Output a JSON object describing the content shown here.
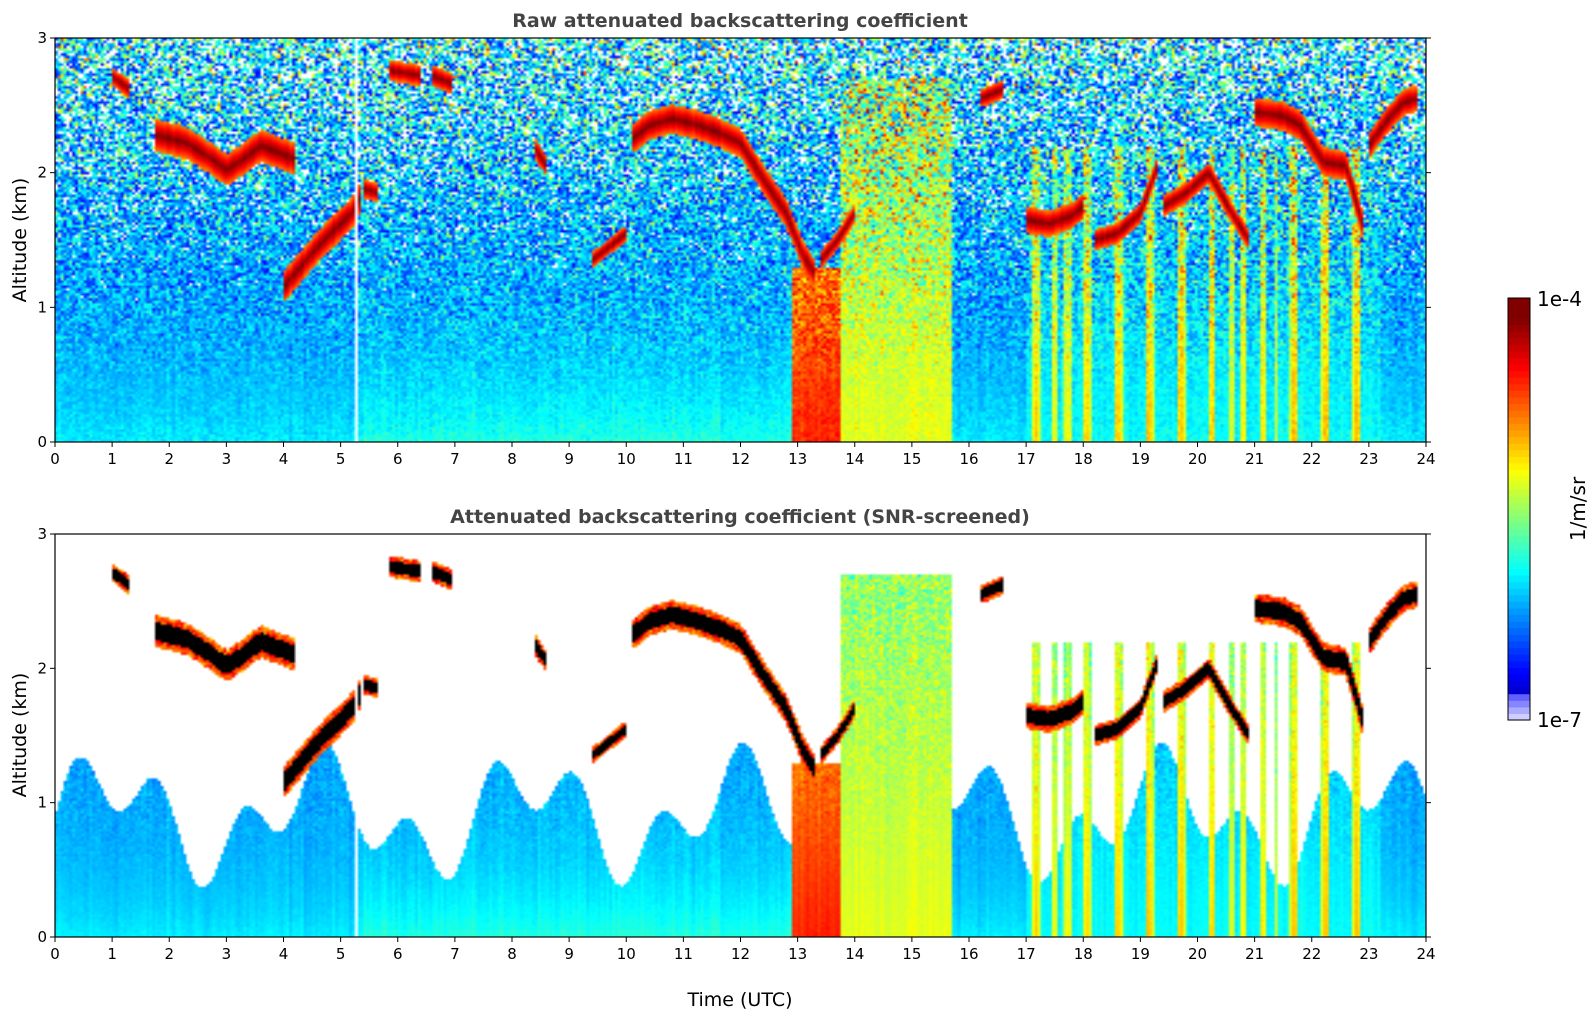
{
  "chart_data": [
    {
      "type": "heatmap",
      "title": "Raw attenuated backscattering coefficient",
      "xlabel": "",
      "ylabel": "Altitude (km)",
      "xlim": [
        0,
        24
      ],
      "ylim": [
        0,
        3
      ],
      "xticks": [
        0,
        1,
        2,
        3,
        4,
        5,
        6,
        7,
        8,
        9,
        10,
        11,
        12,
        13,
        14,
        15,
        16,
        17,
        18,
        19,
        20,
        21,
        22,
        23,
        24
      ],
      "yticks": [
        0,
        1,
        2,
        3
      ],
      "screened": false
    },
    {
      "type": "heatmap",
      "title": "Attenuated backscattering coefficient (SNR-screened)",
      "xlabel": "Time (UTC)",
      "ylabel": "Altitude (km)",
      "xlim": [
        0,
        24
      ],
      "ylim": [
        0,
        3
      ],
      "xticks": [
        0,
        1,
        2,
        3,
        4,
        5,
        6,
        7,
        8,
        9,
        10,
        11,
        12,
        13,
        14,
        15,
        16,
        17,
        18,
        19,
        20,
        21,
        22,
        23,
        24
      ],
      "yticks": [
        0,
        1,
        2,
        3
      ],
      "screened": true
    }
  ],
  "colorbar": {
    "label": "1/m/sr",
    "max_label": "1e-4",
    "min_label": "1e-7",
    "colormap": "jet",
    "scale": "log",
    "range": [
      1e-07,
      0.0001
    ]
  },
  "cloud_layers": [
    {
      "t": [
        0.98,
        1.3
      ],
      "alt": [
        2.72,
        2.62
      ],
      "w": 0.07
    },
    {
      "t": [
        1.75,
        2.3,
        2.75,
        3.0,
        3.3,
        3.6,
        3.85,
        4.2
      ],
      "alt": [
        2.28,
        2.22,
        2.1,
        2.02,
        2.1,
        2.2,
        2.16,
        2.1
      ],
      "w": 0.12
    },
    {
      "t": [
        4.0,
        4.3,
        4.6,
        4.9,
        5.2,
        5.35
      ],
      "alt": [
        1.15,
        1.3,
        1.45,
        1.58,
        1.7,
        1.82
      ],
      "w": 0.12
    },
    {
      "t": [
        5.4,
        5.65
      ],
      "alt": [
        1.88,
        1.85
      ],
      "w": 0.07
    },
    {
      "t": [
        5.85,
        6.4
      ],
      "alt": [
        2.76,
        2.72
      ],
      "w": 0.08
    },
    {
      "t": [
        6.6,
        6.95
      ],
      "alt": [
        2.72,
        2.66
      ],
      "w": 0.08
    },
    {
      "t": [
        8.4,
        8.6
      ],
      "alt": [
        2.18,
        2.05
      ],
      "w": 0.08
    },
    {
      "t": [
        9.4,
        9.7,
        10.0
      ],
      "alt": [
        1.35,
        1.45,
        1.55
      ],
      "w": 0.06
    },
    {
      "t": [
        10.1,
        10.4,
        10.8,
        11.2,
        11.6,
        12.0,
        12.4,
        12.8,
        13.1,
        13.3
      ],
      "alt": [
        2.25,
        2.35,
        2.4,
        2.36,
        2.3,
        2.22,
        1.95,
        1.7,
        1.38,
        1.25
      ],
      "w": 0.11
    },
    {
      "t": [
        13.4,
        13.7,
        14.0
      ],
      "alt": [
        1.35,
        1.5,
        1.7
      ],
      "w": 0.07
    },
    {
      "t": [
        16.2,
        16.6
      ],
      "alt": [
        2.55,
        2.62
      ],
      "w": 0.07
    },
    {
      "t": [
        17.0,
        17.4,
        17.8,
        18.0
      ],
      "alt": [
        1.65,
        1.62,
        1.68,
        1.75
      ],
      "w": 0.1
    },
    {
      "t": [
        18.2,
        18.6,
        19.0,
        19.3
      ],
      "alt": [
        1.5,
        1.55,
        1.7,
        2.05
      ],
      "w": 0.08
    },
    {
      "t": [
        19.4,
        19.8,
        20.2,
        20.6,
        20.9
      ],
      "alt": [
        1.75,
        1.85,
        2.0,
        1.7,
        1.5
      ],
      "w": 0.08
    },
    {
      "t": [
        21.0,
        21.5,
        21.8,
        22.2,
        22.6,
        22.9
      ],
      "alt": [
        2.45,
        2.42,
        2.35,
        2.08,
        2.05,
        1.6
      ],
      "w": 0.11
    },
    {
      "t": [
        23.0,
        23.3,
        23.6,
        23.85
      ],
      "alt": [
        2.2,
        2.38,
        2.52,
        2.55
      ],
      "w": 0.1
    }
  ],
  "precip_columns": [
    {
      "t0": 12.9,
      "t1": 13.75,
      "top": 1.3,
      "level": 0.85
    },
    {
      "t0": 13.75,
      "t1": 15.7,
      "top": 2.7,
      "level": 0.6
    },
    {
      "t0": 17.0,
      "t1": 23.2,
      "top": 2.2,
      "level": 0.55,
      "streaks": true
    }
  ]
}
